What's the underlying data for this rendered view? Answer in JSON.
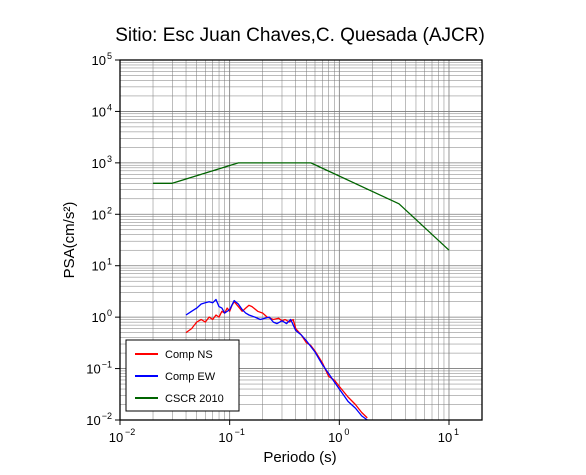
{
  "chart_data": {
    "type": "line",
    "title": "Sitio: Esc Juan Chaves,C. Quesada (AJCR)",
    "xlabel": "Periodo (s)",
    "ylabel": "PSA(cm/s²)",
    "xscale": "log",
    "yscale": "log",
    "xlim": [
      0.01,
      20
    ],
    "ylim": [
      0.01,
      100000
    ],
    "grid": true,
    "legend_position": "bottom-left",
    "x_ticks": [
      {
        "base": "10",
        "exp": "−2"
      },
      {
        "base": "10",
        "exp": "−1"
      },
      {
        "base": "10",
        "exp": "0"
      },
      {
        "base": "10",
        "exp": "1"
      }
    ],
    "y_ticks": [
      {
        "base": "10",
        "exp": "−2"
      },
      {
        "base": "10",
        "exp": "−1"
      },
      {
        "base": "10",
        "exp": "0"
      },
      {
        "base": "10",
        "exp": "1"
      },
      {
        "base": "10",
        "exp": "2"
      },
      {
        "base": "10",
        "exp": "3"
      },
      {
        "base": "10",
        "exp": "4"
      },
      {
        "base": "10",
        "exp": "5"
      }
    ],
    "series": [
      {
        "name": "Comp NS",
        "color": "#ff0000",
        "x": [
          0.04,
          0.045,
          0.05,
          0.055,
          0.06,
          0.065,
          0.07,
          0.075,
          0.08,
          0.085,
          0.09,
          0.095,
          0.1,
          0.105,
          0.11,
          0.12,
          0.13,
          0.14,
          0.15,
          0.16,
          0.18,
          0.2,
          0.22,
          0.25,
          0.28,
          0.3,
          0.32,
          0.35,
          0.38,
          0.4,
          0.45,
          0.5,
          0.55,
          0.6,
          0.7,
          0.8,
          0.9,
          1.0,
          1.1,
          1.2,
          1.4,
          1.6,
          1.8
        ],
        "y": [
          0.5,
          0.6,
          0.8,
          0.9,
          0.8,
          1.0,
          0.9,
          1.1,
          1.0,
          1.3,
          1.2,
          1.5,
          1.3,
          1.7,
          2.0,
          1.6,
          1.3,
          1.5,
          1.7,
          1.6,
          1.3,
          1.2,
          1.0,
          0.9,
          0.95,
          0.85,
          0.9,
          0.8,
          0.9,
          0.6,
          0.45,
          0.32,
          0.28,
          0.22,
          0.13,
          0.07,
          0.06,
          0.045,
          0.035,
          0.028,
          0.02,
          0.014,
          0.011
        ]
      },
      {
        "name": "Comp EW",
        "color": "#0000ff",
        "x": [
          0.04,
          0.045,
          0.05,
          0.055,
          0.06,
          0.065,
          0.07,
          0.075,
          0.08,
          0.085,
          0.09,
          0.1,
          0.11,
          0.12,
          0.13,
          0.14,
          0.15,
          0.17,
          0.19,
          0.21,
          0.23,
          0.25,
          0.27,
          0.3,
          0.33,
          0.36,
          0.4,
          0.45,
          0.5,
          0.6,
          0.7,
          0.8,
          0.9,
          1.0,
          1.1,
          1.2,
          1.4,
          1.6,
          1.8
        ],
        "y": [
          1.1,
          1.3,
          1.5,
          1.8,
          1.9,
          2.0,
          1.9,
          2.2,
          1.6,
          1.5,
          1.2,
          1.4,
          2.1,
          1.8,
          1.4,
          1.2,
          1.1,
          1.0,
          0.9,
          0.95,
          1.0,
          0.8,
          0.75,
          0.85,
          0.75,
          0.9,
          0.55,
          0.45,
          0.35,
          0.21,
          0.12,
          0.08,
          0.055,
          0.04,
          0.03,
          0.023,
          0.017,
          0.012,
          0.01
        ]
      },
      {
        "name": "CSCR 2010",
        "color": "#006400",
        "x": [
          0.02,
          0.03,
          0.12,
          0.55,
          3.5,
          10
        ],
        "y": [
          400,
          400,
          1000,
          1000,
          160,
          20
        ]
      }
    ]
  }
}
